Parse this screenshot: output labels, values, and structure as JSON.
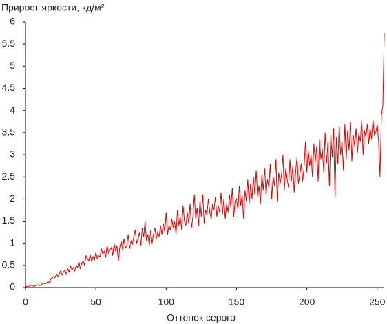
{
  "chart_data": {
    "type": "line",
    "title": "Прирост яркости, кд/м²",
    "x_label": "Оттенок серого",
    "color": "#e00000",
    "xlim": [
      0,
      255
    ],
    "xticks": [
      0,
      50,
      100,
      150,
      200,
      250
    ],
    "ylim": [
      0,
      6
    ],
    "yticks": [
      0,
      0.5,
      1,
      1.5,
      2,
      2.5,
      3,
      3.5,
      4,
      4.5,
      5,
      5.5,
      6
    ],
    "grid": false,
    "x": [
      0,
      1,
      2,
      3,
      4,
      5,
      6,
      7,
      8,
      9,
      10,
      11,
      12,
      13,
      14,
      15,
      16,
      17,
      18,
      19,
      20,
      21,
      22,
      23,
      24,
      25,
      26,
      27,
      28,
      29,
      30,
      31,
      32,
      33,
      34,
      35,
      36,
      37,
      38,
      39,
      40,
      41,
      42,
      43,
      44,
      45,
      46,
      47,
      48,
      49,
      50,
      51,
      52,
      53,
      54,
      55,
      56,
      57,
      58,
      59,
      60,
      61,
      62,
      63,
      64,
      65,
      66,
      67,
      68,
      69,
      70,
      71,
      72,
      73,
      74,
      75,
      76,
      77,
      78,
      79,
      80,
      81,
      82,
      83,
      84,
      85,
      86,
      87,
      88,
      89,
      90,
      91,
      92,
      93,
      94,
      95,
      96,
      97,
      98,
      99,
      100,
      101,
      102,
      103,
      104,
      105,
      106,
      107,
      108,
      109,
      110,
      111,
      112,
      113,
      114,
      115,
      116,
      117,
      118,
      119,
      120,
      121,
      122,
      123,
      124,
      125,
      126,
      127,
      128,
      129,
      130,
      131,
      132,
      133,
      134,
      135,
      136,
      137,
      138,
      139,
      140,
      141,
      142,
      143,
      144,
      145,
      146,
      147,
      148,
      149,
      150,
      151,
      152,
      153,
      154,
      155,
      156,
      157,
      158,
      159,
      160,
      161,
      162,
      163,
      164,
      165,
      166,
      167,
      168,
      169,
      170,
      171,
      172,
      173,
      174,
      175,
      176,
      177,
      178,
      179,
      180,
      181,
      182,
      183,
      184,
      185,
      186,
      187,
      188,
      189,
      190,
      191,
      192,
      193,
      194,
      195,
      196,
      197,
      198,
      199,
      200,
      201,
      202,
      203,
      204,
      205,
      206,
      207,
      208,
      209,
      210,
      211,
      212,
      213,
      214,
      215,
      216,
      217,
      218,
      219,
      220,
      221,
      222,
      223,
      224,
      225,
      226,
      227,
      228,
      229,
      230,
      231,
      232,
      233,
      234,
      235,
      236,
      237,
      238,
      239,
      240,
      241,
      242,
      243,
      244,
      245,
      246,
      247,
      248,
      249,
      250,
      251,
      252,
      253,
      254,
      255
    ],
    "values": [
      0,
      0.03,
      0.03,
      0.03,
      0.05,
      0.05,
      0.02,
      0.04,
      0.06,
      0.06,
      0.04,
      0.06,
      0.08,
      0.1,
      0.08,
      0.1,
      0.14,
      0.1,
      0.2,
      0.22,
      0.25,
      0.22,
      0.3,
      0.25,
      0.3,
      0.38,
      0.28,
      0.35,
      0.4,
      0.3,
      0.42,
      0.35,
      0.48,
      0.4,
      0.45,
      0.38,
      0.5,
      0.45,
      0.58,
      0.42,
      0.55,
      0.6,
      0.5,
      0.72,
      0.65,
      0.6,
      0.75,
      0.58,
      0.7,
      0.62,
      0.8,
      0.65,
      0.72,
      0.7,
      0.88,
      0.75,
      0.82,
      0.68,
      0.95,
      0.78,
      0.85,
      0.9,
      0.72,
      1.0,
      0.82,
      0.95,
      0.6,
      0.9,
      1.05,
      0.85,
      1.1,
      0.9,
      0.95,
      1.2,
      0.88,
      1.05,
      0.98,
      1.15,
      1.3,
      1.0,
      1.1,
      1.25,
      0.95,
      1.35,
      1.15,
      1.5,
      1.05,
      1.2,
      0.95,
      1.3,
      1.0,
      1.2,
      1.35,
      1.1,
      1.25,
      1.15,
      1.4,
      1.2,
      1.45,
      1.25,
      1.7,
      1.2,
      1.4,
      1.3,
      1.55,
      1.35,
      1.5,
      1.2,
      1.75,
      1.4,
      1.6,
      1.3,
      1.85,
      1.5,
      1.4,
      1.7,
      1.45,
      1.9,
      1.35,
      1.6,
      2.1,
      1.55,
      1.8,
      1.4,
      1.95,
      1.6,
      2.1,
      1.45,
      1.75,
      1.65,
      2.0,
      1.7,
      1.55,
      1.9,
      1.75,
      2.05,
      1.6,
      1.85,
      1.7,
      2.15,
      1.65,
      2.0,
      1.55,
      1.9,
      1.7,
      2.1,
      1.8,
      2.25,
      1.6,
      1.95,
      2.0,
      1.75,
      2.3,
      1.85,
      2.1,
      1.55,
      2.2,
      1.95,
      2.45,
      1.9,
      2.35,
      2.0,
      2.5,
      2.1,
      2.65,
      2.05,
      2.3,
      1.9,
      2.55,
      2.2,
      2.7,
      2.1,
      2.45,
      2.25,
      2.8,
      2.0,
      2.5,
      2.3,
      2.9,
      1.95,
      2.6,
      2.35,
      2.55,
      3.0,
      2.2,
      2.7,
      2.45,
      2.25,
      2.9,
      2.4,
      2.75,
      2.15,
      2.6,
      2.95,
      2.35,
      2.55,
      2.8,
      2.4,
      2.7,
      3.3,
      2.6,
      3.1,
      2.75,
      3.0,
      2.5,
      3.25,
      2.85,
      3.2,
      2.4,
      3.35,
      2.9,
      3.15,
      2.6,
      3.5,
      2.8,
      3.3,
      2.3,
      3.45,
      2.95,
      3.6,
      2.05,
      3.4,
      2.8,
      3.65,
      3.0,
      3.3,
      2.65,
      3.7,
      2.9,
      3.55,
      3.1,
      3.75,
      2.85,
      3.45,
      3.2,
      3.6,
      3.05,
      3.5,
      3.3,
      3.8,
      3.0,
      3.55,
      3.4,
      3.7,
      3.25,
      3.6,
      3.35,
      3.8,
      3.45,
      3.5,
      3.7,
      3.3,
      2.5,
      3.9,
      4.1,
      5.75
    ]
  }
}
